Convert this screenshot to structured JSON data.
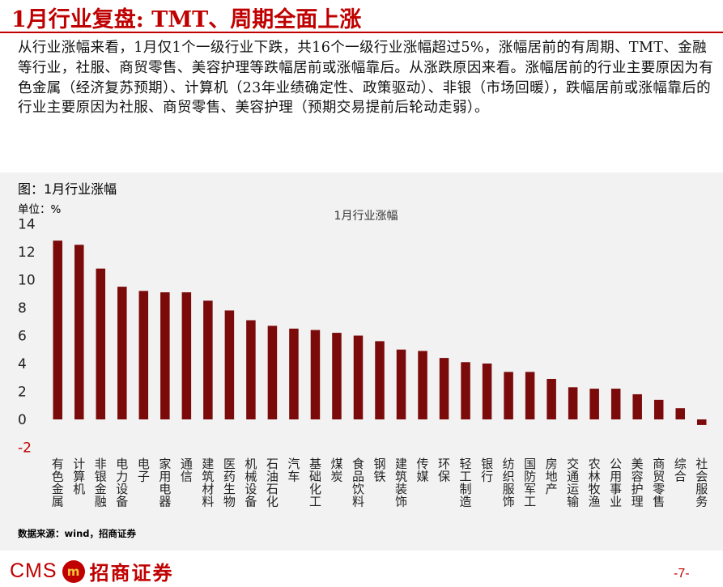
{
  "slide": {
    "title": "1月行业复盘: TMT、周期全面上涨",
    "summary": "从行业涨幅来看，1月仅1个一级行业下跌，共16个一级行业涨幅超过5%，涨幅居前的有周期、TMT、金融等行业，社服、商贸零售、美容护理等跌幅居前或涨幅靠后。从涨跌原因来看。涨幅居前的行业主要原因为有色金属（经济复苏预期）、计算机（23年业绩确定性、政策驱动）、非银（市场回暖），跌幅居前或涨幅靠后的行业主要原因为社服、商贸零售、美容护理（预期交易提前后轮动走弱）。",
    "chart_caption": "图：1月行业涨幅",
    "unit_label": "单位：%",
    "source": "数据来源：wind，招商证券",
    "logo_text": "CMS",
    "logo_mark": "m",
    "logo_cn": "招商证券",
    "page_number": "-7-"
  },
  "colors": {
    "accent": "#c00000",
    "bar": "#7b0a0a",
    "panel": "#f2f2f2"
  },
  "chart_data": {
    "type": "bar",
    "title": "1月行业涨幅",
    "ylabel": "单位：%",
    "ylim": [
      -2,
      14
    ],
    "yticks": [
      -2,
      0,
      2,
      4,
      6,
      8,
      10,
      12,
      14
    ],
    "grid": false,
    "categories": [
      "有色金属",
      "计算机",
      "非银金融",
      "电力设备",
      "电子",
      "家用电器",
      "通信",
      "建筑材料",
      "医药生物",
      "机械设备",
      "石油石化",
      "汽车",
      "基础化工",
      "煤炭",
      "食品饮料",
      "钢铁",
      "建筑装饰",
      "传媒",
      "环保",
      "轻工制造",
      "银行",
      "纺织服饰",
      "国防军工",
      "房地产",
      "交通运输",
      "农林牧渔",
      "公用事业",
      "美容护理",
      "商贸零售",
      "综合",
      "社会服务"
    ],
    "values": [
      12.8,
      12.5,
      10.8,
      9.5,
      9.2,
      9.1,
      9.1,
      8.5,
      7.8,
      7.1,
      6.7,
      6.5,
      6.4,
      6.2,
      6.0,
      5.6,
      5.0,
      4.9,
      4.4,
      4.1,
      4.0,
      3.4,
      3.4,
      2.9,
      2.3,
      2.2,
      2.2,
      1.8,
      1.4,
      0.8,
      -0.4
    ]
  }
}
